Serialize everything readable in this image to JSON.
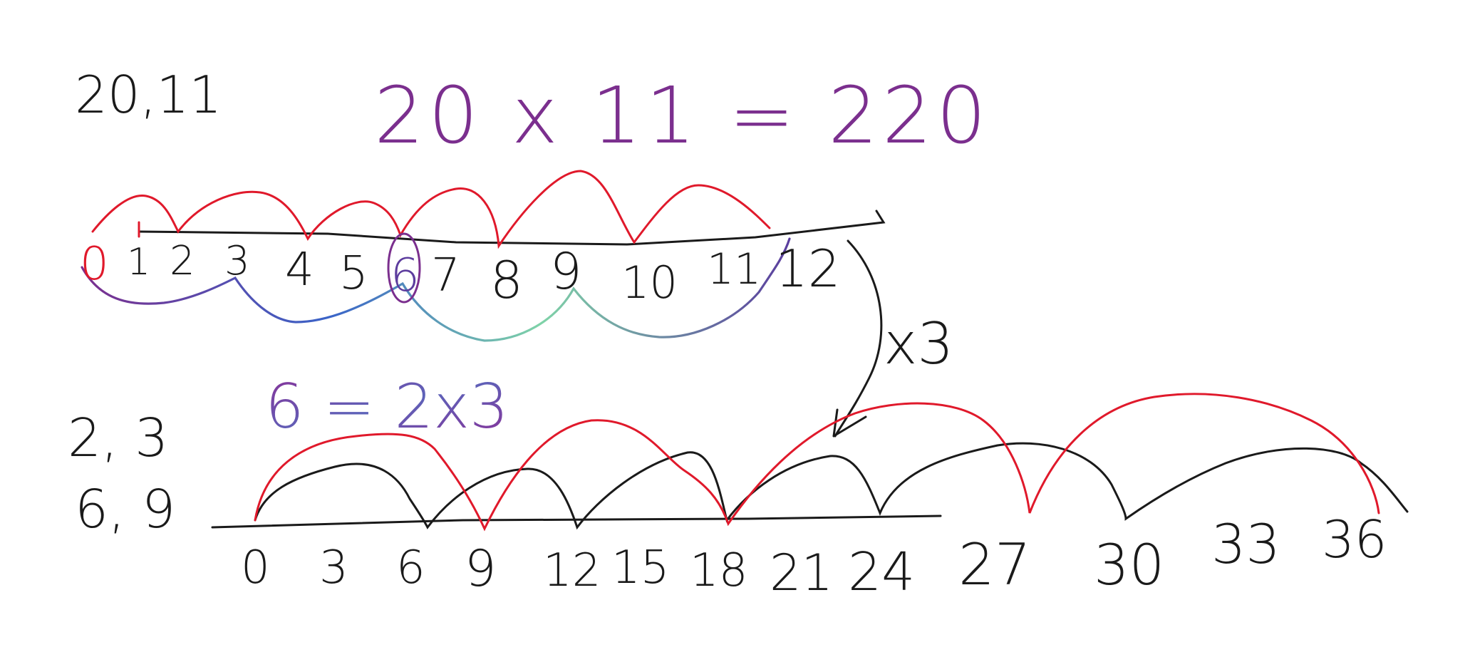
{
  "top_left_note": "20,11",
  "equation_top": "20 x 11 = 220",
  "top_number_line": {
    "labels": [
      "0",
      "1",
      "2",
      "3",
      "4",
      "5",
      "6",
      "7",
      "8",
      "9",
      "10",
      "11",
      "12"
    ]
  },
  "multiplier_label": "x3",
  "left_notes_bottom": [
    "2, 3",
    "6, 9"
  ],
  "equation_bottom": "6 = 2x3",
  "bottom_number_line": {
    "labels": [
      "0",
      "3",
      "6",
      "9",
      "12",
      "15",
      "18",
      "21",
      "24",
      "27",
      "30",
      "33",
      "36"
    ]
  },
  "colors": {
    "ink": "#1a1a1a",
    "red": "#e0192b",
    "purple": "#7b2f8e",
    "gradient": [
      "#7b2f8e",
      "#3a7bd5",
      "#7fd3a8"
    ]
  }
}
